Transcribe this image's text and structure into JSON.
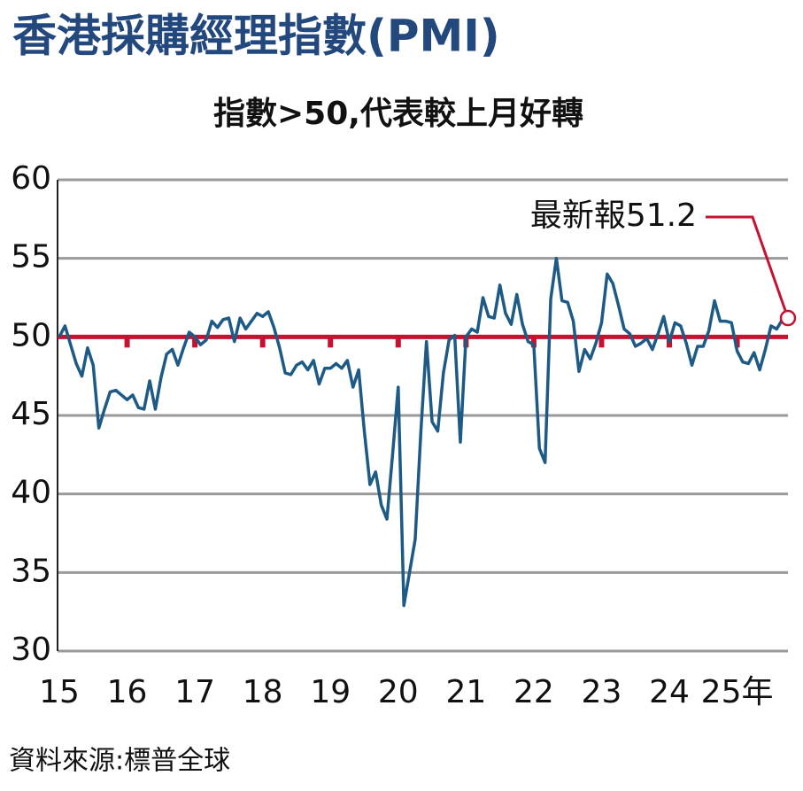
{
  "chart_data": {
    "type": "line",
    "title": "香港採購經理指數(PMI)",
    "subtitle": "指數>50,代表較上月好轉",
    "source": "資料來源:標普全球",
    "annotation": "最新報51.2",
    "categories": [
      "15",
      null,
      null,
      null,
      null,
      null,
      null,
      null,
      null,
      null,
      null,
      null,
      "16",
      null,
      null,
      null,
      null,
      null,
      null,
      null,
      null,
      null,
      null,
      null,
      "17",
      null,
      null,
      null,
      null,
      null,
      null,
      null,
      null,
      null,
      null,
      null,
      "18",
      null,
      null,
      null,
      null,
      null,
      null,
      null,
      null,
      null,
      null,
      null,
      "19",
      null,
      null,
      null,
      null,
      null,
      null,
      null,
      null,
      null,
      null,
      null,
      "20",
      null,
      null,
      null,
      null,
      null,
      null,
      null,
      null,
      null,
      null,
      null,
      "21",
      null,
      null,
      null,
      null,
      null,
      null,
      null,
      null,
      null,
      null,
      null,
      "22",
      null,
      null,
      null,
      null,
      null,
      null,
      null,
      null,
      null,
      null,
      null,
      "23",
      null,
      null,
      null,
      null,
      null,
      null,
      null,
      null,
      null,
      null,
      null,
      "24",
      null,
      null,
      null,
      null,
      null,
      null,
      null,
      null,
      null,
      null,
      null,
      "25年",
      null,
      null,
      null,
      null,
      null,
      null,
      null,
      null,
      null
    ],
    "series": [
      {
        "name": "PMI",
        "color": "#1d5a86",
        "values": [
          50.0,
          50.7,
          49.5,
          48.3,
          47.5,
          49.3,
          48.2,
          44.2,
          45.4,
          46.5,
          46.6,
          46.3,
          46.0,
          46.3,
          45.5,
          45.4,
          47.2,
          45.4,
          47.4,
          48.9,
          49.2,
          48.2,
          49.3,
          50.3,
          50.0,
          49.5,
          49.8,
          51.0,
          50.6,
          51.1,
          51.2,
          49.7,
          51.2,
          50.5,
          51.0,
          51.5,
          51.3,
          51.6,
          50.6,
          49.3,
          47.7,
          47.6,
          48.2,
          48.4,
          47.9,
          48.5,
          47.0,
          48.0,
          48.0,
          48.3,
          48.0,
          48.5,
          46.8,
          47.9,
          44.0,
          40.6,
          41.4,
          39.3,
          38.4,
          42.5,
          46.8,
          32.9,
          35.0,
          37.1,
          43.9,
          49.7,
          44.6,
          44.0,
          47.7,
          49.8,
          50.1,
          43.3,
          50.0,
          50.5,
          50.3,
          52.5,
          51.3,
          51.2,
          53.3,
          51.5,
          50.8,
          52.7,
          50.8,
          49.7,
          49.5,
          42.9,
          42.0,
          52.4,
          55.0,
          52.3,
          52.2,
          51.0,
          47.8,
          49.2,
          48.6,
          49.6,
          50.9,
          54.0,
          53.4,
          52.0,
          50.5,
          50.2,
          49.4,
          49.6,
          49.9,
          49.2,
          50.2,
          51.3,
          49.7,
          50.9,
          50.7,
          49.6,
          48.2,
          49.4,
          49.4,
          50.4,
          52.3,
          51.0,
          51.0,
          50.9,
          49.1,
          48.4,
          48.3,
          49.0,
          47.9,
          49.2,
          50.7,
          50.5,
          51.1,
          51.2
        ]
      }
    ],
    "reference_line": 50,
    "reference_color": "#c41230",
    "ylim": [
      30,
      60
    ],
    "yticks": [
      30,
      35,
      40,
      45,
      50,
      55,
      60
    ],
    "grid": true
  }
}
